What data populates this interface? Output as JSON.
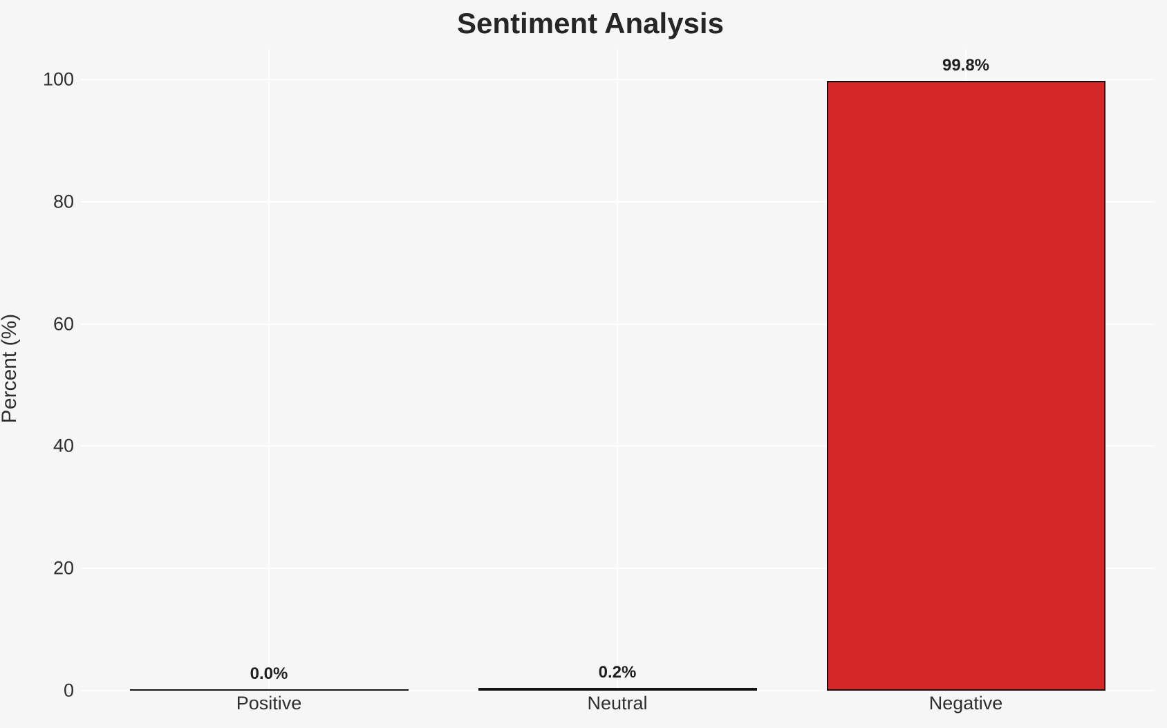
{
  "page": {
    "background_color": "#f6f6f7"
  },
  "chart_data": {
    "type": "bar",
    "title": "Sentiment Analysis",
    "xlabel": "",
    "ylabel": "Percent (%)",
    "categories": [
      "Positive",
      "Neutral",
      "Negative"
    ],
    "values": [
      0.0,
      0.2,
      99.8
    ],
    "value_labels": [
      "0.0%",
      "0.2%",
      "99.8%"
    ],
    "yticks": [
      0,
      20,
      40,
      60,
      80,
      100
    ],
    "ytick_labels": [
      "0",
      "20",
      "40",
      "60",
      "80",
      "100"
    ],
    "ylim": [
      0,
      105
    ],
    "legend": "none",
    "grid": "both axes, white gridlines on light gray background",
    "colors": {
      "negative_bar_fill": "#d62728",
      "bar_edge": "#111111",
      "tiny_bar_line": "#141414",
      "gridline": "#ffffff",
      "background": "#f6f6f7",
      "text": "#2e2e2e"
    }
  }
}
